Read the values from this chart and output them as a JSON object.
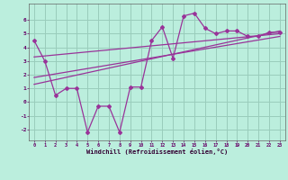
{
  "xlabel": "Windchill (Refroidissement éolien,°C)",
  "background_color": "#bbeedd",
  "grid_color": "#99ccbb",
  "line_color": "#993399",
  "x_data": [
    0,
    1,
    2,
    3,
    4,
    5,
    6,
    7,
    8,
    9,
    10,
    11,
    12,
    13,
    14,
    15,
    16,
    17,
    18,
    19,
    20,
    21,
    22,
    23
  ],
  "y_main": [
    4.5,
    3.0,
    0.5,
    1.0,
    1.0,
    -2.2,
    -0.3,
    -0.3,
    -2.2,
    1.1,
    1.1,
    4.5,
    5.5,
    3.2,
    6.3,
    6.5,
    5.4,
    5.0,
    5.2,
    5.2,
    4.8,
    4.8,
    5.1,
    5.1
  ],
  "ylim": [
    -2.8,
    7.2
  ],
  "xlim": [
    -0.5,
    23.5
  ],
  "yticks": [
    -2,
    -1,
    0,
    1,
    2,
    3,
    4,
    5,
    6
  ],
  "xticks": [
    0,
    1,
    2,
    3,
    4,
    5,
    6,
    7,
    8,
    9,
    10,
    11,
    12,
    13,
    14,
    15,
    16,
    17,
    18,
    19,
    20,
    21,
    22,
    23
  ],
  "trend1_x": [
    0,
    23
  ],
  "trend1_y": [
    3.3,
    5.0
  ],
  "trend2_x": [
    0,
    23
  ],
  "trend2_y": [
    1.3,
    5.2
  ],
  "trend3_x": [
    0,
    23
  ],
  "trend3_y": [
    1.8,
    4.8
  ]
}
